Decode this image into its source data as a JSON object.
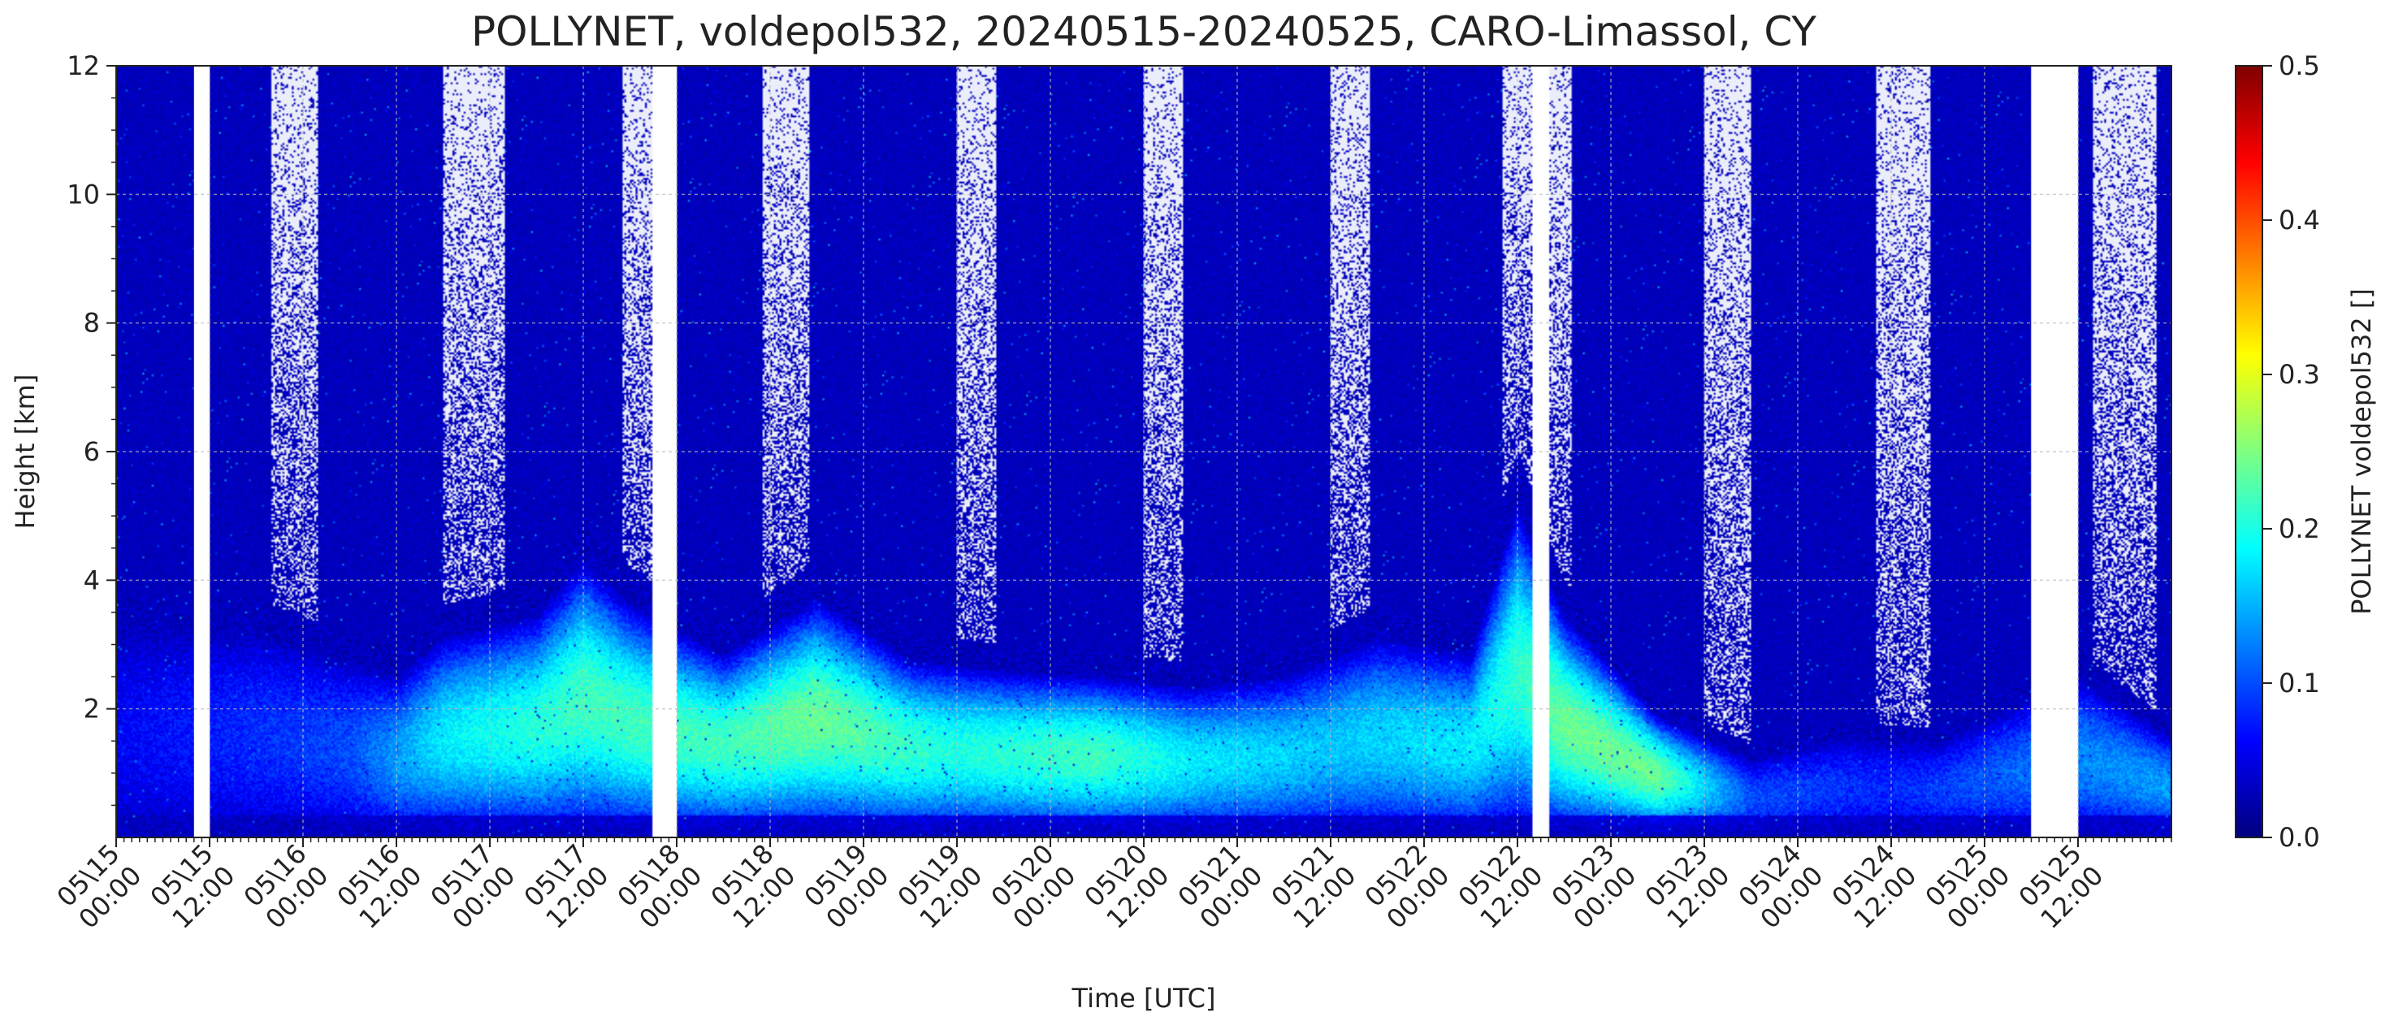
{
  "chart_data": {
    "type": "heatmap",
    "title": "POLLYNET, voldepol532, 20240515-20240525, CARO-Limassol, CY",
    "xlabel": "Time [UTC]",
    "ylabel": "Height [km]",
    "x_start": "2024-05-15 00:00",
    "x_end": "2024-05-26 00:00",
    "xlim": [
      "2024-05-15 00:00",
      "2024-05-26 00:00"
    ],
    "ylim": [
      0,
      12
    ],
    "x_ticks": [
      {
        "time": "2024-05-15 00:00",
        "label": [
          "05\\15",
          "00:00"
        ]
      },
      {
        "time": "2024-05-15 12:00",
        "label": [
          "05\\15",
          "12:00"
        ]
      },
      {
        "time": "2024-05-16 00:00",
        "label": [
          "05\\16",
          "00:00"
        ]
      },
      {
        "time": "2024-05-16 12:00",
        "label": [
          "05\\16",
          "12:00"
        ]
      },
      {
        "time": "2024-05-17 00:00",
        "label": [
          "05\\17",
          "00:00"
        ]
      },
      {
        "time": "2024-05-17 12:00",
        "label": [
          "05\\17",
          "12:00"
        ]
      },
      {
        "time": "2024-05-18 00:00",
        "label": [
          "05\\18",
          "00:00"
        ]
      },
      {
        "time": "2024-05-18 12:00",
        "label": [
          "05\\18",
          "12:00"
        ]
      },
      {
        "time": "2024-05-19 00:00",
        "label": [
          "05\\19",
          "00:00"
        ]
      },
      {
        "time": "2024-05-19 12:00",
        "label": [
          "05\\19",
          "12:00"
        ]
      },
      {
        "time": "2024-05-20 00:00",
        "label": [
          "05\\20",
          "00:00"
        ]
      },
      {
        "time": "2024-05-20 12:00",
        "label": [
          "05\\20",
          "12:00"
        ]
      },
      {
        "time": "2024-05-21 00:00",
        "label": [
          "05\\21",
          "00:00"
        ]
      },
      {
        "time": "2024-05-21 12:00",
        "label": [
          "05\\21",
          "12:00"
        ]
      },
      {
        "time": "2024-05-22 00:00",
        "label": [
          "05\\22",
          "00:00"
        ]
      },
      {
        "time": "2024-05-22 12:00",
        "label": [
          "05\\22",
          "12:00"
        ]
      },
      {
        "time": "2024-05-23 00:00",
        "label": [
          "05\\23",
          "00:00"
        ]
      },
      {
        "time": "2024-05-23 12:00",
        "label": [
          "05\\23",
          "12:00"
        ]
      },
      {
        "time": "2024-05-24 00:00",
        "label": [
          "05\\24",
          "00:00"
        ]
      },
      {
        "time": "2024-05-24 12:00",
        "label": [
          "05\\24",
          "12:00"
        ]
      },
      {
        "time": "2024-05-25 00:00",
        "label": [
          "05\\25",
          "00:00"
        ]
      },
      {
        "time": "2024-05-25 12:00",
        "label": [
          "05\\25",
          "12:00"
        ]
      }
    ],
    "y_ticks": [
      2,
      4,
      6,
      8,
      10,
      12
    ],
    "grid": true,
    "colorbar": {
      "label": "POLLYNET voldepol532 []",
      "range": [
        0.0,
        0.5
      ],
      "ticks": [
        0.0,
        0.1,
        0.2,
        0.3,
        0.4,
        0.5
      ],
      "tick_labels": [
        "0.0",
        "0.1",
        "0.2",
        "0.3",
        "0.4",
        "0.5"
      ],
      "colormap": "jet",
      "placement": "right"
    },
    "color_stops": [
      "#00007f",
      "#0000ff",
      "#007fff",
      "#00ffff",
      "#7fff7f",
      "#ffff00",
      "#ff7f00",
      "#ff0000",
      "#7f0000"
    ],
    "no_data_intervals": [
      {
        "start": "2024-05-15 10:00",
        "end": "2024-05-15 12:00"
      },
      {
        "start": "2024-05-17 21:00",
        "end": "2024-05-18 00:00"
      },
      {
        "start": "2024-05-22 14:00",
        "end": "2024-05-22 16:00"
      },
      {
        "start": "2024-05-25 06:00",
        "end": "2024-05-25 12:00"
      }
    ],
    "daytime_noise_intervals": [
      {
        "start": "2024-05-15 20:00",
        "end": "2024-05-16 02:00"
      },
      {
        "start": "2024-05-16 18:00",
        "end": "2024-05-17 02:00"
      },
      {
        "start": "2024-05-17 17:00",
        "end": "2024-05-17 21:00"
      },
      {
        "start": "2024-05-18 11:00",
        "end": "2024-05-18 17:00"
      },
      {
        "start": "2024-05-19 12:00",
        "end": "2024-05-19 17:00"
      },
      {
        "start": "2024-05-20 12:00",
        "end": "2024-05-20 17:00"
      },
      {
        "start": "2024-05-21 12:00",
        "end": "2024-05-21 17:00"
      },
      {
        "start": "2024-05-22 10:00",
        "end": "2024-05-22 19:00"
      },
      {
        "start": "2024-05-23 12:00",
        "end": "2024-05-23 18:00"
      },
      {
        "start": "2024-05-24 10:00",
        "end": "2024-05-24 17:00"
      },
      {
        "start": "2024-05-25 14:00",
        "end": "2024-05-25 22:00"
      }
    ],
    "aerosol_layer_top_km": [
      {
        "time": "2024-05-15 00:00",
        "height": 3.8
      },
      {
        "time": "2024-05-15 18:00",
        "height": 3.7
      },
      {
        "time": "2024-05-16 12:00",
        "height": 2.9
      },
      {
        "time": "2024-05-16 18:00",
        "height": 3.6
      },
      {
        "time": "2024-05-17 06:00",
        "height": 4.0
      },
      {
        "time": "2024-05-17 12:00",
        "height": 5.0
      },
      {
        "time": "2024-05-17 18:00",
        "height": 4.2
      },
      {
        "time": "2024-05-18 06:00",
        "height": 3.3
      },
      {
        "time": "2024-05-18 18:00",
        "height": 4.3
      },
      {
        "time": "2024-05-19 06:00",
        "height": 3.2
      },
      {
        "time": "2024-05-19 18:00",
        "height": 3.0
      },
      {
        "time": "2024-05-20 06:00",
        "height": 2.9
      },
      {
        "time": "2024-05-20 18:00",
        "height": 2.7
      },
      {
        "time": "2024-05-21 06:00",
        "height": 2.9
      },
      {
        "time": "2024-05-21 18:00",
        "height": 3.6
      },
      {
        "time": "2024-05-22 06:00",
        "height": 3.3
      },
      {
        "time": "2024-05-22 12:00",
        "height": 6.0
      },
      {
        "time": "2024-05-22 18:00",
        "height": 4.0
      },
      {
        "time": "2024-05-23 06:00",
        "height": 2.2
      },
      {
        "time": "2024-05-23 18:00",
        "height": 1.4
      },
      {
        "time": "2024-05-24 06:00",
        "height": 1.8
      },
      {
        "time": "2024-05-24 18:00",
        "height": 1.7
      },
      {
        "time": "2024-05-25 12:00",
        "height": 2.9
      },
      {
        "time": "2024-05-26 00:00",
        "height": 1.8
      }
    ],
    "aerosol_peak_depol": [
      {
        "time": "2024-05-15 00:00",
        "value": 0.06
      },
      {
        "time": "2024-05-16 06:00",
        "value": 0.1
      },
      {
        "time": "2024-05-16 18:00",
        "value": 0.18
      },
      {
        "time": "2024-05-17 12:00",
        "value": 0.22
      },
      {
        "time": "2024-05-18 06:00",
        "value": 0.22
      },
      {
        "time": "2024-05-18 18:00",
        "value": 0.24
      },
      {
        "time": "2024-05-19 12:00",
        "value": 0.2
      },
      {
        "time": "2024-05-20 06:00",
        "value": 0.22
      },
      {
        "time": "2024-05-20 18:00",
        "value": 0.18
      },
      {
        "time": "2024-05-21 12:00",
        "value": 0.16
      },
      {
        "time": "2024-05-22 06:00",
        "value": 0.18
      },
      {
        "time": "2024-05-22 18:00",
        "value": 0.24
      },
      {
        "time": "2024-05-23 06:00",
        "value": 0.24
      },
      {
        "time": "2024-05-23 18:00",
        "value": 0.1
      },
      {
        "time": "2024-05-24 12:00",
        "value": 0.08
      },
      {
        "time": "2024-05-25 12:00",
        "value": 0.13
      },
      {
        "time": "2024-05-26 00:00",
        "value": 0.14
      }
    ],
    "background_depol": 0.03
  }
}
